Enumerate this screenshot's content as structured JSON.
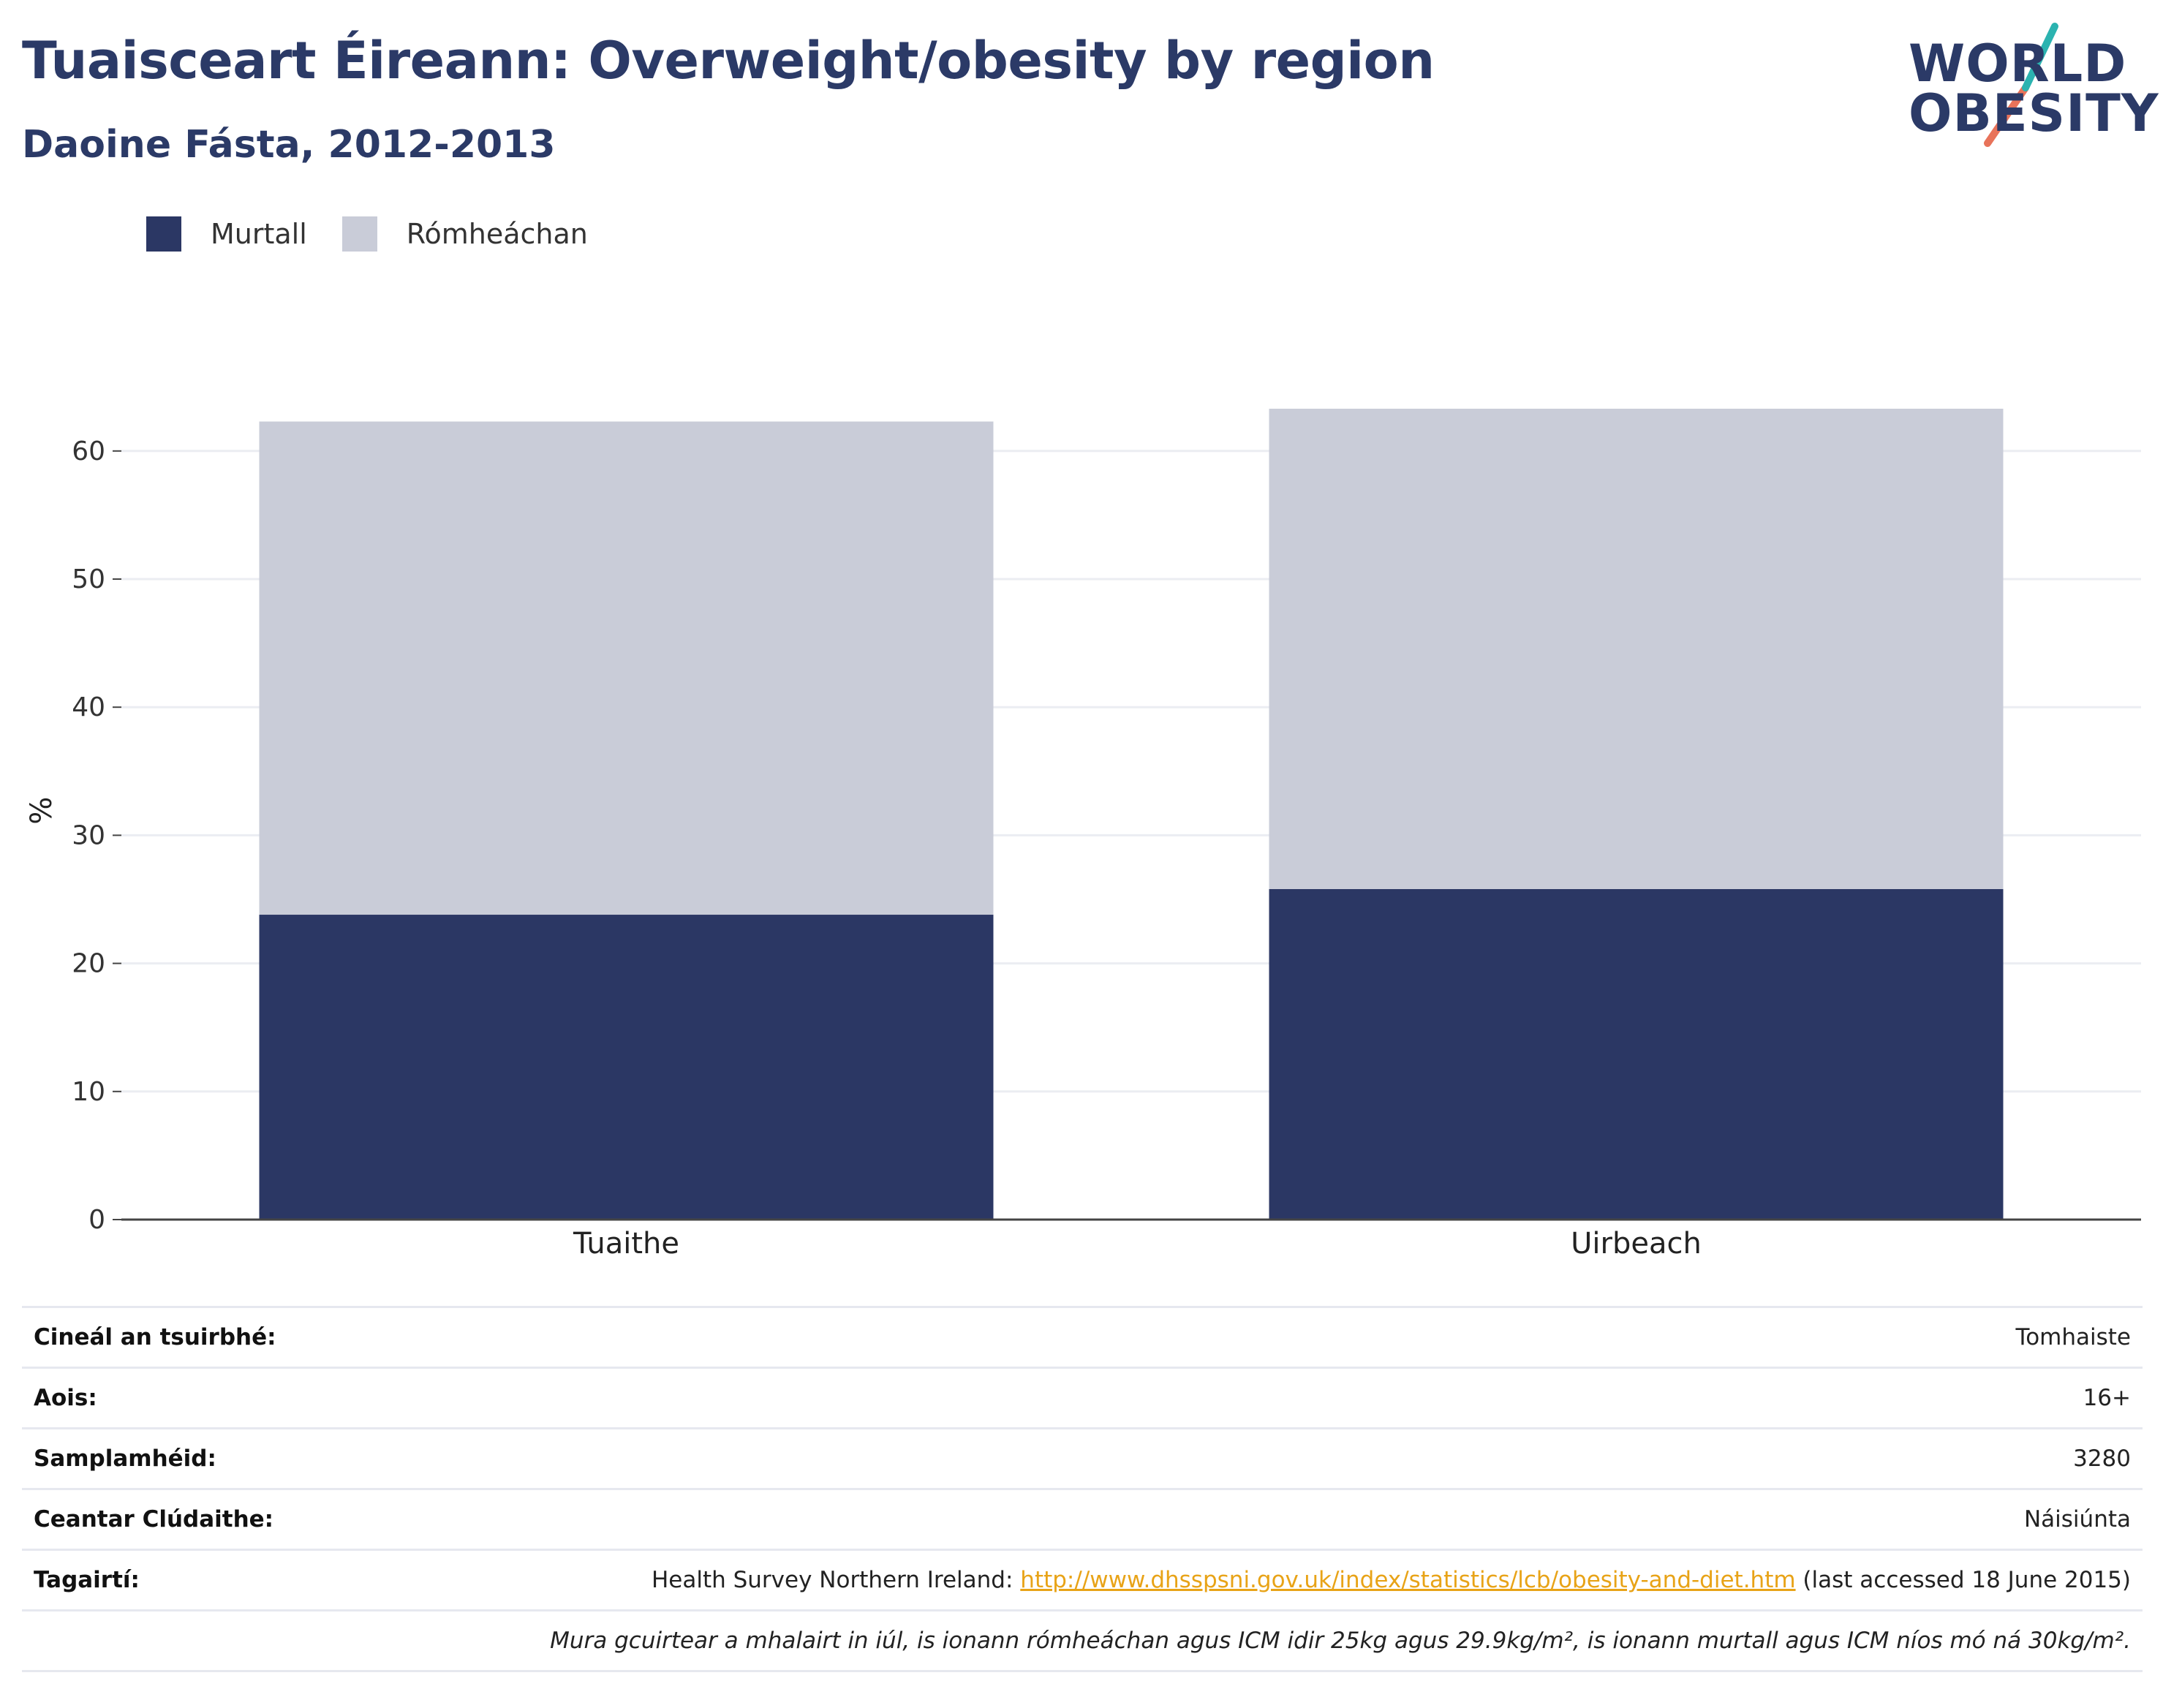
{
  "header": {
    "title": "Tuaisceart Éireann: Overweight/obesity by region",
    "subtitle": "Daoine Fásta, 2012-2013"
  },
  "logo": {
    "line1": "WORLD",
    "line2": "OBESITY",
    "accent_colors": [
      "#2bb3b0",
      "#e8735a"
    ]
  },
  "legend": [
    {
      "label": "Murtall",
      "color": "#2b3764"
    },
    {
      "label": "Rómheáchan",
      "color": "#c9ccd8"
    }
  ],
  "chart_data": {
    "type": "bar",
    "stacked": true,
    "categories": [
      "Tuaithe",
      "Uirbeach"
    ],
    "series": [
      {
        "name": "Murtall",
        "values": [
          23.8,
          25.8
        ],
        "color": "#2b3764"
      },
      {
        "name": "Rómheáchan",
        "values": [
          38.5,
          37.5
        ],
        "color": "#c9ccd8"
      }
    ],
    "ylabel": "%",
    "ylim": [
      0,
      65
    ],
    "yticks": [
      0,
      10,
      20,
      30,
      40,
      50,
      60
    ],
    "grid": true,
    "legend_position": "top-left"
  },
  "info": [
    {
      "key": "Cineál an tsuirbhé:",
      "value": "Tomhaiste"
    },
    {
      "key": "Aois:",
      "value": "16+"
    },
    {
      "key": "Samplamhéid:",
      "value": "3280"
    },
    {
      "key": "Ceantar Clúdaithe:",
      "value": "Náisiúnta"
    }
  ],
  "reference": {
    "key": "Tagairtí:",
    "prefix": "Health Survey Northern Ireland:",
    "url": "http://www.dhsspsni.gov.uk/index/statistics/lcb/obesity-and-diet.htm",
    "suffix": "(last accessed 18 June 2015)"
  },
  "note": "Mura gcuirtear a mhalairt in iúl, is ionann rómheáchan agus ICM idir 25kg agus 29.9kg/m², is ionann murtall agus ICM níos mó ná 30kg/m²."
}
